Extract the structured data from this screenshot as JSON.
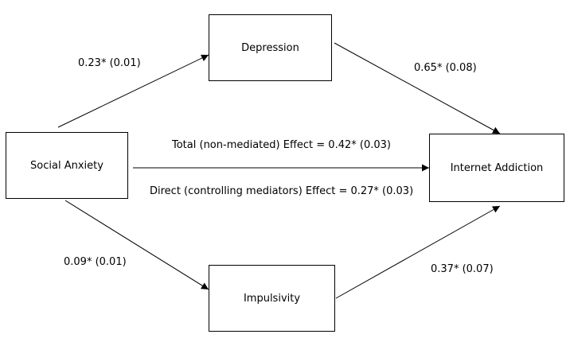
{
  "nodes": {
    "social_anxiety": "Social Anxiety",
    "depression": "Depression",
    "impulsivity": "Impulsivity",
    "internet_addiction": "Internet Addiction"
  },
  "paths": {
    "sa_to_depression": "0.23* (0.01)",
    "depression_to_ia": "0.65* (0.08)",
    "sa_to_impulsivity": "0.09* (0.01)",
    "impulsivity_to_ia": "0.37* (0.07)",
    "total_effect": "Total (non-mediated) Effect = 0.42* (0.03)",
    "direct_effect": "Direct (controlling mediators) Effect = 0.27* (0.03)"
  }
}
